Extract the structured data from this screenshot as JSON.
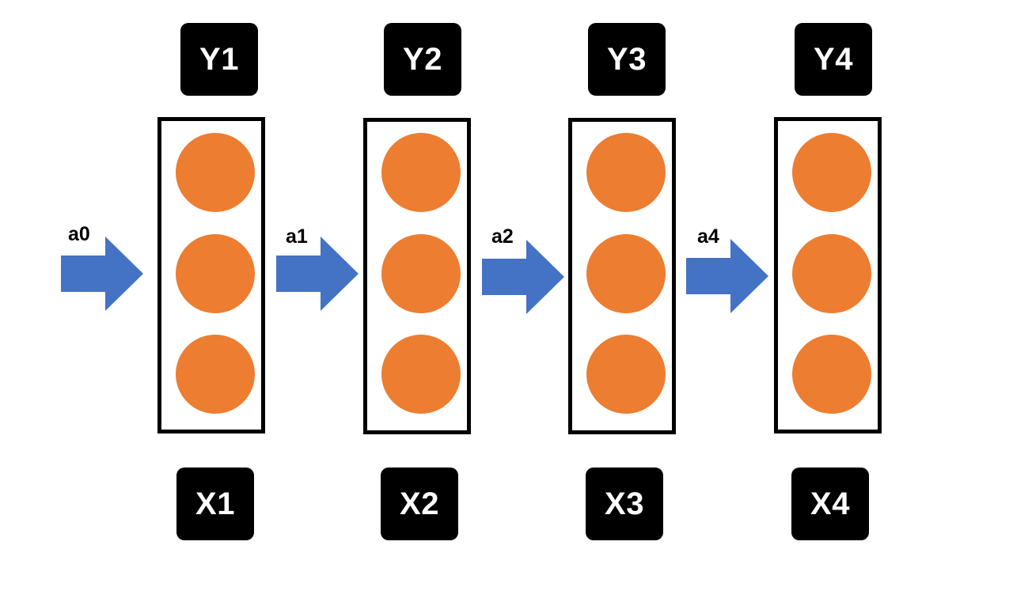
{
  "colors": {
    "neuron": "#ED7D31",
    "arrow": "#4472C4",
    "label_box": "#000000",
    "label_text": "#FFFFFF"
  },
  "outputs": [
    "Y1",
    "Y2",
    "Y3",
    "Y4"
  ],
  "inputs": [
    "X1",
    "X2",
    "X3",
    "X4"
  ],
  "activations": [
    "a0",
    "a1",
    "a2",
    "a4"
  ],
  "neurons_per_cell": 3
}
